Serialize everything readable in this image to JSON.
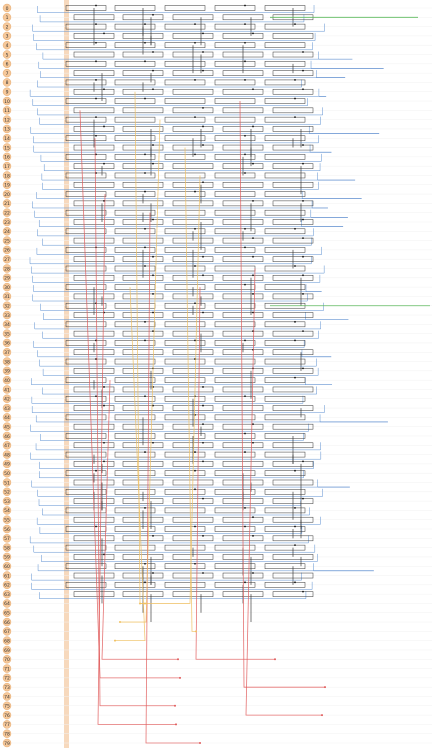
{
  "rows": [
    0,
    1,
    2,
    3,
    4,
    5,
    6,
    7,
    8,
    9,
    10,
    11,
    12,
    13,
    14,
    15,
    16,
    17,
    18,
    19,
    20,
    21,
    22,
    23,
    24,
    25,
    26,
    27,
    28,
    29,
    30,
    31,
    32,
    33,
    34,
    35,
    36,
    37,
    38,
    39,
    40,
    41,
    42,
    43,
    44,
    45,
    46,
    47,
    48,
    49,
    50,
    51,
    52,
    53,
    54,
    55,
    56,
    57,
    58,
    59,
    60,
    61,
    62,
    63,
    64,
    65,
    66,
    67,
    68,
    69,
    70,
    71,
    72,
    73,
    74,
    75,
    76,
    77,
    78,
    79
  ]
}
